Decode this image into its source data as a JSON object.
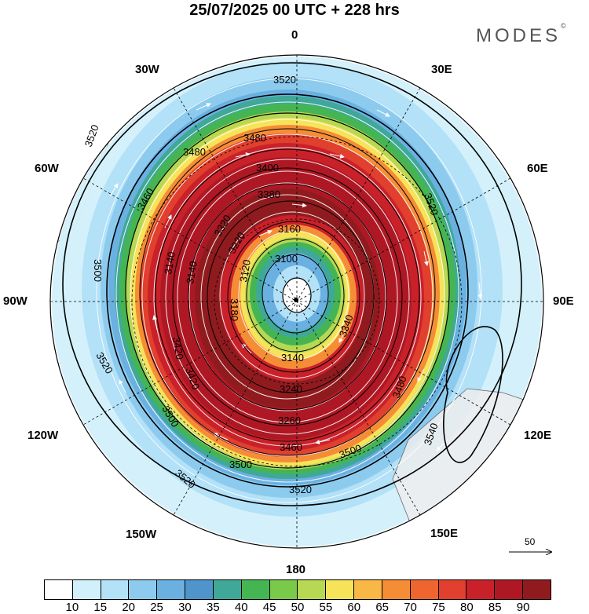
{
  "header": {
    "title": "25/07/2025  00 UTC  + 228 hrs"
  },
  "brand": {
    "name": "MODES",
    "mark": "©"
  },
  "map": {
    "projection": "south polar stereographic",
    "longitude_labels": [
      "0",
      "30E",
      "60E",
      "90E",
      "120E",
      "150E",
      "180",
      "150W",
      "120W",
      "90W",
      "60W",
      "30W"
    ],
    "contour_labels": [
      "3520",
      "3520",
      "3520",
      "3520",
      "3520",
      "3480",
      "3480",
      "3460",
      "3400",
      "3380",
      "3320",
      "3160",
      "3100",
      "3120",
      "3180",
      "3140",
      "3240",
      "3260",
      "3340",
      "3500",
      "3500",
      "3500",
      "3500",
      "3460",
      "3480",
      "3540",
      "3220",
      "3140",
      "3140",
      "3420",
      "3420"
    ],
    "wind_scale": {
      "label": "50"
    }
  },
  "colorbar": {
    "colors": [
      "#ffffff",
      "#d2f0fb",
      "#b2e1f8",
      "#8dcbee",
      "#6ab1e2",
      "#4f95cc",
      "#40a898",
      "#45b554",
      "#79c94a",
      "#b6d853",
      "#f7e35a",
      "#f9b846",
      "#f58d36",
      "#ee6530",
      "#e0402d",
      "#c9212a",
      "#ae1824",
      "#8f1b1f"
    ],
    "ticks": [
      "10",
      "15",
      "20",
      "25",
      "30",
      "35",
      "40",
      "45",
      "50",
      "55",
      "60",
      "65",
      "70",
      "75",
      "80",
      "85",
      "90"
    ]
  }
}
